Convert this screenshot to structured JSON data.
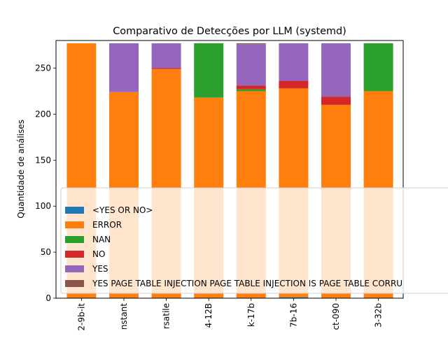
{
  "chart_data": {
    "type": "bar",
    "stacked": true,
    "title": "Comparativo de Detecções por LLM (systemd)",
    "xlabel": "",
    "ylabel": "Quantidade de análises",
    "ylim": [
      0,
      280
    ],
    "yticks": [
      0,
      50,
      100,
      150,
      200,
      250
    ],
    "grid": false,
    "legend_position": "lower-left (overlapping plot)",
    "categories": [
      "2-9b-it",
      "nstant",
      "rsatile",
      "4-12B",
      "k-17b",
      "7b-16",
      "ct-090",
      "3-32b"
    ],
    "series": [
      {
        "name": "<YES OR NO>",
        "color": "#1f77b4",
        "values": [
          0,
          0,
          0,
          0,
          0,
          1,
          0,
          0
        ]
      },
      {
        "name": "ERROR",
        "color": "#ff7f0e",
        "values": [
          277,
          224,
          249,
          218,
          225,
          227,
          210,
          225
        ]
      },
      {
        "name": "NAN",
        "color": "#2ca02c",
        "values": [
          0,
          0,
          0,
          59,
          2,
          0,
          0,
          52
        ]
      },
      {
        "name": "NO",
        "color": "#d62728",
        "values": [
          0,
          0,
          1,
          0,
          4,
          8,
          9,
          0
        ]
      },
      {
        "name": "YES",
        "color": "#9467bd",
        "values": [
          0,
          53,
          27,
          0,
          45,
          41,
          58,
          0
        ]
      },
      {
        "name": "YES PAGE TABLE INJECTION PAGE TABLE INJECTION IS PAGE TABLE CORRU",
        "color": "#8c564b",
        "values": [
          0,
          0,
          0,
          0,
          1,
          0,
          0,
          0
        ]
      }
    ]
  }
}
